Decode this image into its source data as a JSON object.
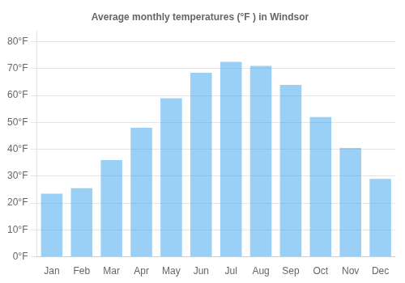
{
  "chart_data": {
    "type": "bar",
    "title": "Average monthly temperatures (°F ) in Windsor",
    "categories": [
      "Jan",
      "Feb",
      "Mar",
      "Apr",
      "May",
      "Jun",
      "Jul",
      "Aug",
      "Sep",
      "Oct",
      "Nov",
      "Dec"
    ],
    "values": [
      23.5,
      25.5,
      36.0,
      48.0,
      59.0,
      68.5,
      72.5,
      71.0,
      64.0,
      52.0,
      40.5,
      29.0
    ],
    "ylim": [
      0,
      84
    ],
    "yticks": [
      {
        "value": 0,
        "label": "0°F"
      },
      {
        "value": 10,
        "label": "10°F"
      },
      {
        "value": 20,
        "label": "20°F"
      },
      {
        "value": 30,
        "label": "30°F"
      },
      {
        "value": 40,
        "label": "40°F"
      },
      {
        "value": 50,
        "label": "50°F"
      },
      {
        "value": 60,
        "label": "60°F"
      },
      {
        "value": 70,
        "label": "70°F"
      },
      {
        "value": 80,
        "label": "80°F"
      }
    ],
    "grid": true
  }
}
